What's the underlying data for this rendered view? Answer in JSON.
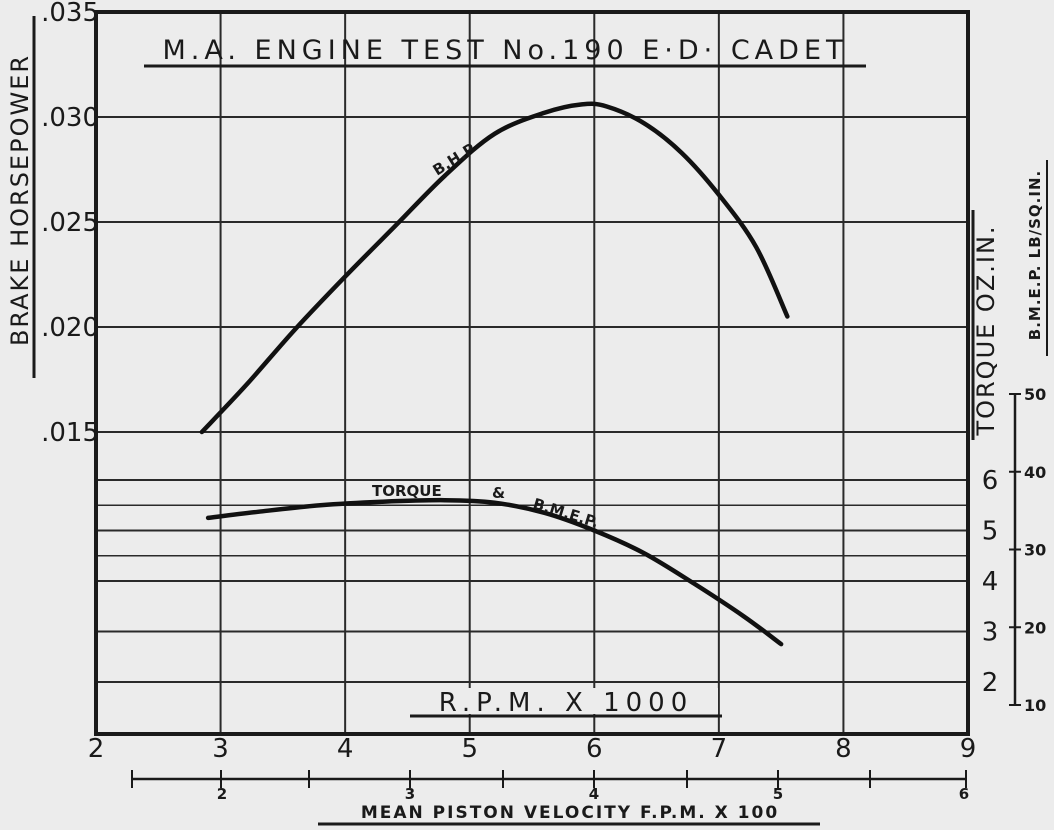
{
  "chart_data": {
    "type": "line",
    "title": "M.A. ENGINE TEST No.190 E·D· CADET",
    "xlabel": "R.P.M. X 1000",
    "secondary_xlabel": "MEAN PISTON VELOCITY F.P.M. X 100",
    "ylabel": "BRAKE HORSEPOWER",
    "y2label": "TORQUE OZ.IN.",
    "y3label": "B.M.E.P. LB/SQ.IN.",
    "xlim": [
      2,
      9
    ],
    "ylim": [
      0,
      0.035
    ],
    "x_ticks": [
      "2",
      "3",
      "4",
      "5",
      "6",
      "7",
      "8",
      "9"
    ],
    "y_ticks": [
      ".015",
      ".020",
      ".025",
      ".030",
      ".035"
    ],
    "y2_ticks": [
      "2",
      "3",
      "4",
      "5",
      "6"
    ],
    "y3_ticks": [
      "10",
      "20",
      "30",
      "40",
      "50"
    ],
    "secondary_x_ticks": [
      "2",
      "3",
      "4",
      "5",
      "6"
    ],
    "grid": true,
    "series": [
      {
        "name": "B.H.P",
        "axis": "bhp",
        "x": [
          2.85,
          3.2,
          3.6,
          4.0,
          4.4,
          4.8,
          5.2,
          5.6,
          5.9,
          6.1,
          6.4,
          6.7,
          7.0,
          7.3,
          7.55
        ],
        "y": [
          0.015,
          0.0172,
          0.0199,
          0.0224,
          0.0248,
          0.0272,
          0.0292,
          0.0302,
          0.0306,
          0.0305,
          0.0297,
          0.0283,
          0.0263,
          0.0238,
          0.0205
        ]
      },
      {
        "name": "TORQUE & B.M.E.P.",
        "axis": "torque",
        "x": [
          2.9,
          3.3,
          3.8,
          4.3,
          4.8,
          5.2,
          5.6,
          6.0,
          6.4,
          6.8,
          7.2,
          7.5
        ],
        "y": [
          5.25,
          5.37,
          5.5,
          5.57,
          5.6,
          5.55,
          5.35,
          5.0,
          4.55,
          3.95,
          3.3,
          2.75
        ]
      }
    ]
  }
}
